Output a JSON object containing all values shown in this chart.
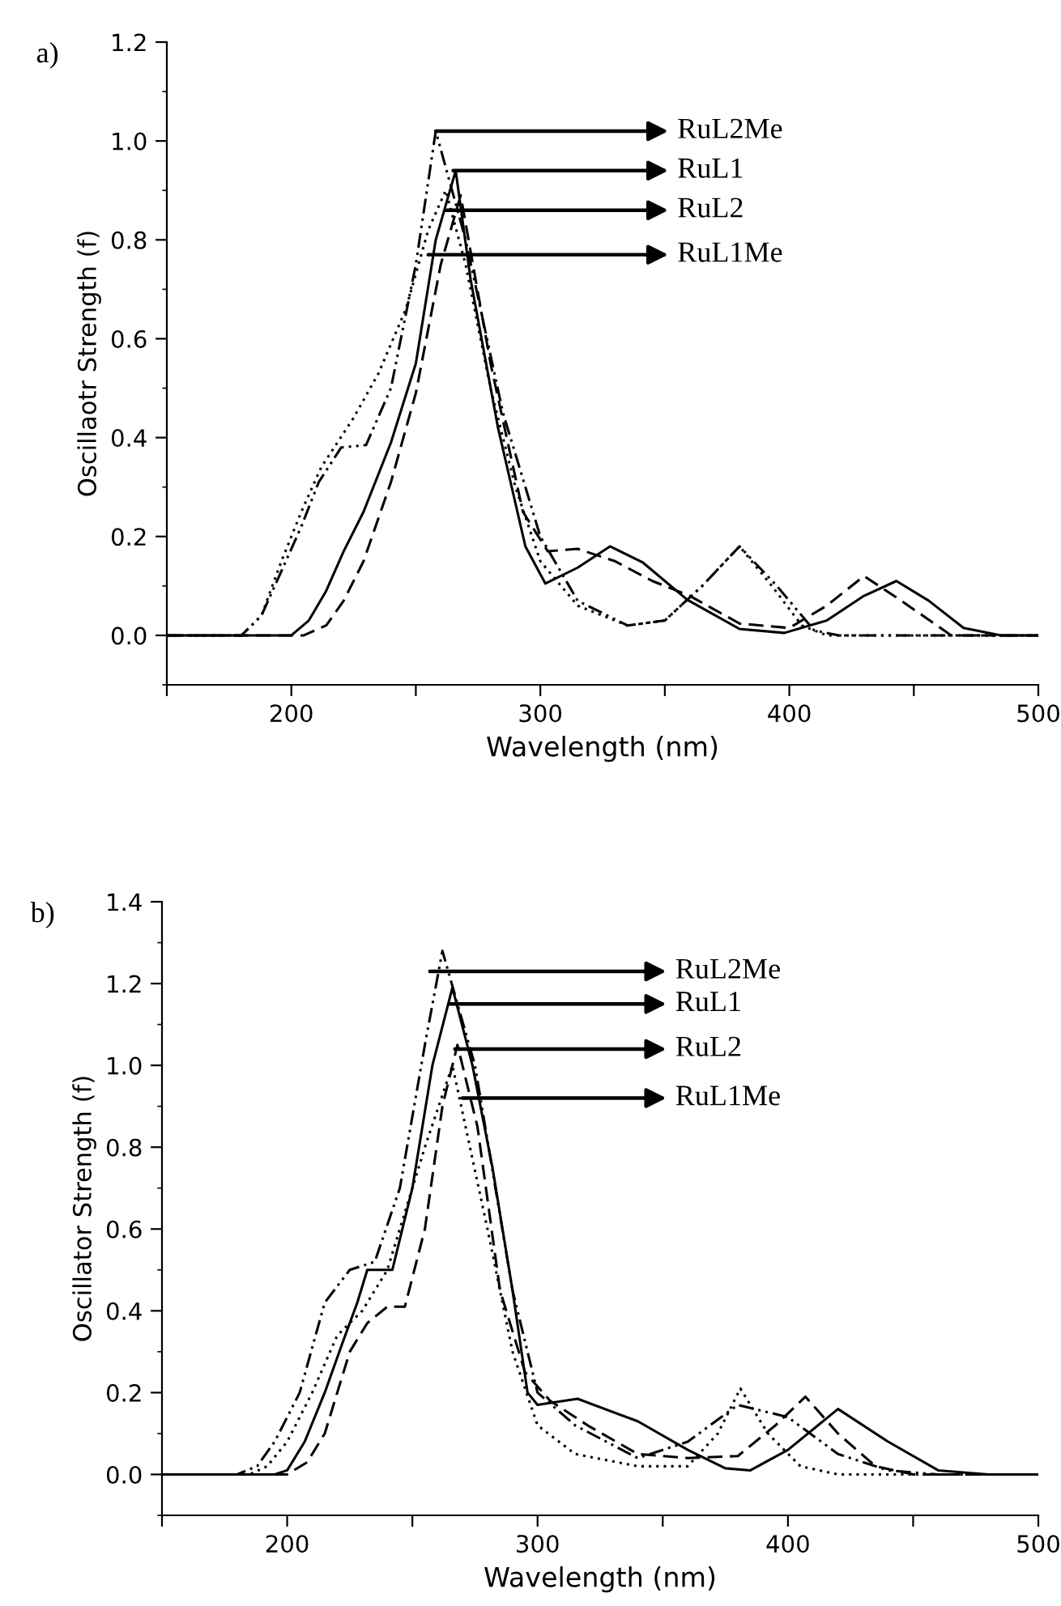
{
  "chart_data": [
    {
      "type": "line",
      "title": "a)",
      "xlabel": "Wavelength (nm)",
      "ylabel": "Oscillaotr Strength (f)",
      "xlim": [
        150,
        500
      ],
      "ylim": [
        -0.1,
        1.2
      ],
      "xticks": [
        {
          "value": 150,
          "label": null
        },
        200,
        {
          "value": 250,
          "label": null
        },
        300,
        {
          "value": 350,
          "label": null
        },
        400,
        {
          "value": 450,
          "label": null
        },
        500
      ],
      "yticks": [
        {
          "value": 0,
          "label": "0.0"
        },
        {
          "value": 0.2,
          "label": "0.2"
        },
        {
          "value": 0.4,
          "label": "0.4"
        },
        {
          "value": 0.6,
          "label": "0.6"
        },
        {
          "value": 0.8,
          "label": "0.8"
        },
        {
          "value": 1,
          "label": "1.0"
        },
        {
          "value": 1.2,
          "label": "1.2"
        }
      ],
      "grid": false,
      "legend": false,
      "series": [
        {
          "color": "#000000",
          "line_style": "solid",
          "x": [
            150,
            200,
            207,
            214,
            221,
            229,
            240,
            250,
            258,
            266,
            272,
            283,
            294,
            302,
            315,
            328,
            341,
            359,
            380,
            398,
            415,
            430,
            443,
            456,
            470,
            485,
            500
          ],
          "values": [
            0,
            0,
            0.03,
            0.09,
            0.17,
            0.25,
            0.39,
            0.55,
            0.8,
            0.94,
            0.72,
            0.42,
            0.18,
            0.105,
            0.137,
            0.18,
            0.148,
            0.072,
            0.013,
            0.005,
            0.03,
            0.08,
            0.11,
            0.07,
            0.015,
            0,
            0
          ]
        },
        {
          "color": "#000000",
          "line_style": "dashed",
          "x": [
            150,
            205,
            214,
            221,
            229,
            240,
            250,
            260,
            268,
            280,
            293,
            303,
            315,
            330,
            345,
            360,
            380,
            400,
            415,
            430,
            445,
            465,
            500
          ],
          "values": [
            0,
            0,
            0.02,
            0.07,
            0.15,
            0.31,
            0.49,
            0.75,
            0.89,
            0.55,
            0.25,
            0.17,
            0.175,
            0.15,
            0.11,
            0.08,
            0.024,
            0.015,
            0.06,
            0.12,
            0.07,
            0,
            0
          ]
        },
        {
          "color": "#000000",
          "line_style": "dotted",
          "x": [
            150,
            180,
            188,
            196,
            204,
            212,
            225,
            235,
            246,
            255,
            262,
            270,
            280,
            290,
            300,
            315,
            335,
            350,
            365,
            380,
            393,
            405,
            415,
            500
          ],
          "values": [
            0,
            0,
            0.04,
            0.15,
            0.25,
            0.34,
            0.44,
            0.53,
            0.66,
            0.82,
            0.9,
            0.75,
            0.5,
            0.3,
            0.15,
            0.06,
            0.02,
            0.03,
            0.1,
            0.18,
            0.1,
            0.02,
            0,
            0
          ]
        },
        {
          "color": "#000000",
          "line_style": "dashdot",
          "x": [
            150,
            180,
            188,
            196,
            204,
            211,
            220,
            230,
            240,
            250,
            258,
            270,
            285,
            300,
            315,
            335,
            350,
            365,
            380,
            395,
            410,
            420,
            500
          ],
          "values": [
            0,
            0,
            0.04,
            0.13,
            0.22,
            0.31,
            0.38,
            0.385,
            0.5,
            0.75,
            1.02,
            0.8,
            0.45,
            0.2,
            0.07,
            0.02,
            0.03,
            0.1,
            0.18,
            0.1,
            0.01,
            0,
            0
          ]
        }
      ],
      "annotations": [
        {
          "text": "RuL2Me",
          "x": 258,
          "y": 1.02
        },
        {
          "text": "RuL1",
          "x": 265,
          "y": 0.94
        },
        {
          "text": "RuL2",
          "x": 262,
          "y": 0.86
        },
        {
          "text": "RuL1Me",
          "x": 255,
          "y": 0.77
        }
      ]
    },
    {
      "type": "line",
      "title": "b)",
      "xlabel": "Wavelength (nm)",
      "ylabel": "Oscillator Strength (f)",
      "xlim": [
        150,
        500
      ],
      "ylim": [
        -0.1,
        1.4
      ],
      "xticks": [
        {
          "value": 150,
          "label": null
        },
        200,
        {
          "value": 250,
          "label": null
        },
        300,
        {
          "value": 350,
          "label": null
        },
        400,
        {
          "value": 450,
          "label": null
        },
        500
      ],
      "yticks": [
        {
          "value": 0,
          "label": "0.0"
        },
        {
          "value": 0.2,
          "label": "0.2"
        },
        {
          "value": 0.4,
          "label": "0.4"
        },
        {
          "value": 0.6,
          "label": "0.6"
        },
        {
          "value": 0.8,
          "label": "0.8"
        },
        {
          "value": 1,
          "label": "1.0"
        },
        {
          "value": 1.2,
          "label": "1.2"
        },
        {
          "value": 1.4,
          "label": "1.4"
        }
      ],
      "grid": false,
      "legend": false,
      "series": [
        {
          "color": "#000000",
          "line_style": "solid",
          "x": [
            150,
            195,
            200,
            207,
            215,
            222,
            228,
            232,
            242,
            250,
            258,
            266,
            274,
            282,
            290,
            296,
            300,
            316,
            340,
            360,
            375,
            385,
            400,
            420,
            440,
            460,
            480,
            500
          ],
          "values": [
            0,
            0,
            0.01,
            0.08,
            0.2,
            0.32,
            0.42,
            0.5,
            0.5,
            0.7,
            1.0,
            1.19,
            1.0,
            0.75,
            0.45,
            0.2,
            0.17,
            0.185,
            0.13,
            0.06,
            0.015,
            0.01,
            0.06,
            0.16,
            0.08,
            0.01,
            0,
            0
          ]
        },
        {
          "color": "#000000",
          "line_style": "dashed",
          "x": [
            150,
            200,
            208,
            215,
            225,
            232,
            240,
            247,
            255,
            262,
            268,
            276,
            285,
            295,
            305,
            320,
            340,
            360,
            380,
            395,
            407,
            420,
            435,
            450,
            500
          ],
          "values": [
            0,
            0,
            0.03,
            0.1,
            0.3,
            0.37,
            0.41,
            0.41,
            0.6,
            0.9,
            1.05,
            0.85,
            0.45,
            0.25,
            0.18,
            0.12,
            0.05,
            0.04,
            0.045,
            0.12,
            0.19,
            0.1,
            0.02,
            0,
            0
          ]
        },
        {
          "color": "#000000",
          "line_style": "dotted",
          "x": [
            150,
            185,
            192,
            200,
            210,
            220,
            230,
            240,
            255,
            266,
            280,
            290,
            300,
            315,
            340,
            360,
            372,
            381,
            392,
            405,
            420,
            500
          ],
          "values": [
            0,
            0,
            0.02,
            0.08,
            0.2,
            0.34,
            0.4,
            0.5,
            0.8,
            1.0,
            0.6,
            0.3,
            0.12,
            0.05,
            0.02,
            0.02,
            0.1,
            0.21,
            0.1,
            0.02,
            0,
            0
          ]
        },
        {
          "color": "#000000",
          "line_style": "dashdot",
          "x": [
            150,
            180,
            188,
            195,
            205,
            215,
            225,
            235,
            245,
            255,
            262,
            275,
            290,
            300,
            315,
            340,
            360,
            380,
            400,
            420,
            440,
            460,
            500
          ],
          "values": [
            0,
            0,
            0.02,
            0.08,
            0.2,
            0.42,
            0.5,
            0.52,
            0.7,
            1.05,
            1.28,
            1.0,
            0.45,
            0.2,
            0.12,
            0.04,
            0.08,
            0.17,
            0.14,
            0.05,
            0.01,
            0,
            0
          ]
        }
      ],
      "annotations": [
        {
          "text": "RuL2Me",
          "x": 257,
          "y": 1.23
        },
        {
          "text": "RuL1",
          "x": 265,
          "y": 1.15
        },
        {
          "text": "RuL2",
          "x": 267,
          "y": 1.04
        },
        {
          "text": "RuL1Me",
          "x": 270,
          "y": 0.92
        }
      ]
    }
  ]
}
